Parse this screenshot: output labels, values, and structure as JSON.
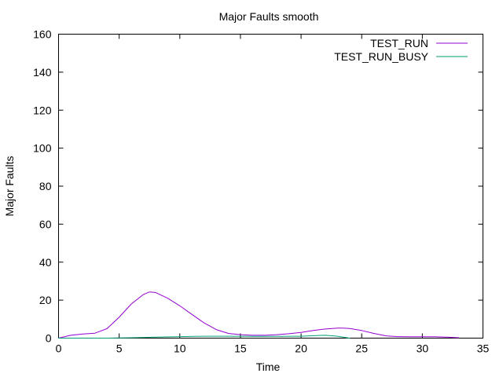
{
  "chart_data": {
    "type": "line",
    "title": "Major Faults smooth",
    "xlabel": "Time",
    "ylabel": "Major Faults",
    "xlim": [
      0,
      35
    ],
    "ylim": [
      0,
      160
    ],
    "xticks": [
      0,
      5,
      10,
      15,
      20,
      25,
      30,
      35
    ],
    "yticks": [
      0,
      20,
      40,
      60,
      80,
      100,
      120,
      140,
      160
    ],
    "grid": false,
    "legend_position": "top-right",
    "series": [
      {
        "name": "TEST_RUN",
        "color": "#9400d3",
        "x": [
          0,
          1,
          2,
          3,
          4,
          5,
          6,
          7,
          7.5,
          8,
          9,
          10,
          11,
          12,
          13,
          14,
          15,
          16,
          17,
          18,
          19,
          20,
          21,
          22,
          23,
          23.5,
          24,
          25,
          26,
          27,
          28,
          29,
          30,
          31,
          32,
          33
        ],
        "y": [
          0,
          1.5,
          2.2,
          2.6,
          5,
          11,
          18,
          23,
          24.3,
          24,
          21,
          17,
          12.5,
          8,
          4.5,
          2.5,
          1.8,
          1.5,
          1.5,
          1.8,
          2.3,
          3,
          4,
          4.8,
          5.3,
          5.3,
          5.1,
          4,
          2.5,
          1.2,
          0.8,
          0.7,
          0.7,
          0.7,
          0.5,
          0.2
        ]
      },
      {
        "name": "TEST_RUN_BUSY",
        "color": "#009e73",
        "x": [
          0,
          2,
          4,
          6,
          8,
          10,
          12,
          14,
          16,
          18,
          20,
          21,
          22,
          23,
          24
        ],
        "y": [
          0,
          0,
          0,
          0.2,
          0.5,
          0.8,
          1,
          1,
          0.9,
          0.9,
          1,
          1.3,
          1.5,
          1,
          0
        ]
      }
    ]
  }
}
